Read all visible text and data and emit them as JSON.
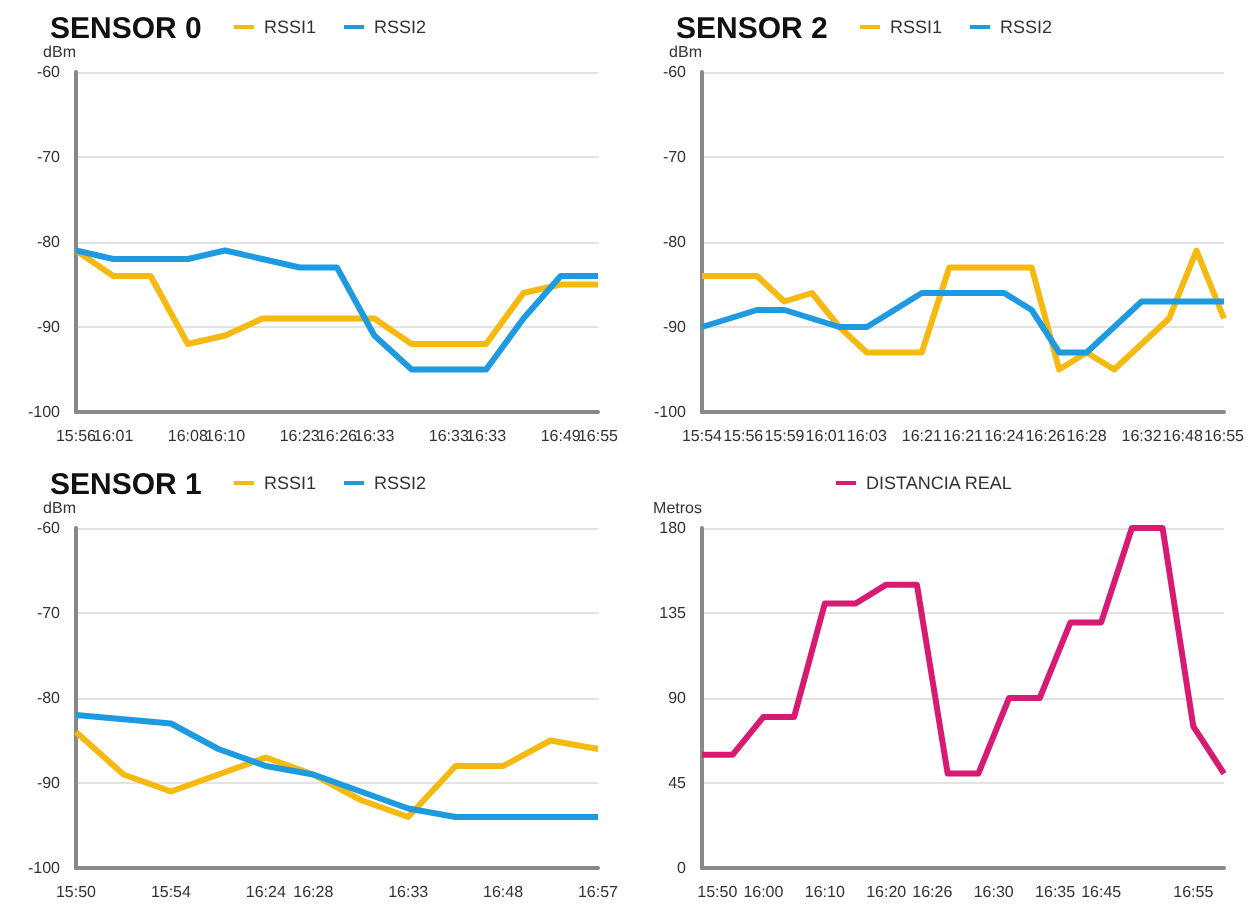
{
  "chart_data": [
    {
      "type": "line",
      "title": "SENSOR 0",
      "ylabel": "dBm",
      "categories": [
        "15:56",
        "16:01",
        null,
        "16:08",
        "16:10",
        null,
        "16:23",
        "16:26",
        "16:33",
        null,
        "16:33",
        "16:33",
        null,
        "16:49",
        "16:55"
      ],
      "series": [
        {
          "name": "RSSI1",
          "color": "#f5b90f",
          "values": [
            -81,
            -84,
            -84,
            -92,
            -91,
            -89,
            -89,
            -89,
            -89,
            -92,
            -92,
            -92,
            -86,
            -85,
            -85
          ]
        },
        {
          "name": "RSSI2",
          "color": "#1e9be0",
          "values": [
            -81,
            -82,
            -82,
            -82,
            -81,
            -82,
            -83,
            -83,
            -91,
            -95,
            -95,
            -95,
            -89,
            -84,
            -84
          ]
        }
      ],
      "ylim": [
        -100,
        -60
      ],
      "yticks": [
        -100,
        -90,
        -80,
        -70,
        -60
      ],
      "grid": "y",
      "legend": "top",
      "marker": "none",
      "line_style": "solid"
    },
    {
      "type": "line",
      "title": "SENSOR 2",
      "ylabel": "dBm",
      "categories": [
        "15:54",
        null,
        null,
        "15:56",
        null,
        null,
        "15:59",
        null,
        null,
        "16:01",
        null,
        null,
        "16:03",
        null,
        null,
        null,
        "16:21",
        null,
        null,
        "16:21",
        null,
        null,
        "16:24",
        null,
        null,
        "16:26",
        null,
        null,
        "16:28",
        null,
        null,
        null,
        "16:32",
        null,
        null,
        "16:48",
        null,
        null,
        "16:55"
      ],
      "series": [
        {
          "name": "RSSI1",
          "color": "#f5b90f",
          "values": [
            -84,
            -84,
            -84,
            -84,
            -84,
            -85.5,
            -87,
            -86.5,
            -86,
            -88,
            -90,
            -91.5,
            -93,
            -93,
            -93,
            -93,
            -93,
            -88,
            -83,
            -83,
            -83,
            -83,
            -83,
            -83,
            -83,
            -89,
            -95,
            -94,
            -93,
            -94,
            -95,
            -93.5,
            -92,
            -90.5,
            -89,
            -85,
            -81,
            -85,
            -89
          ]
        },
        {
          "name": "RSSI2",
          "color": "#1e9be0",
          "values": [
            -90,
            -89.5,
            -89,
            -88.5,
            -88,
            -88,
            -88,
            -88.5,
            -89,
            -89.5,
            -90,
            -90,
            -90,
            -89,
            -88,
            -87,
            -86,
            -86,
            -86,
            -86,
            -86,
            -86,
            -86,
            -87,
            -88,
            -90.5,
            -93,
            -93,
            -93,
            -91.5,
            -90,
            -88.5,
            -87,
            -87,
            -87,
            -87,
            -87,
            -87,
            -87
          ]
        }
      ],
      "ylim": [
        -100,
        -60
      ],
      "yticks": [
        -100,
        -90,
        -80,
        -70,
        -60
      ],
      "grid": "y",
      "legend": "top",
      "marker": "none",
      "line_style": "solid"
    },
    {
      "type": "line",
      "title": "SENSOR 1",
      "ylabel": "dBm",
      "categories": [
        "15:50",
        null,
        "15:54",
        null,
        "16:24",
        "16:28",
        null,
        "16:33",
        null,
        "16:48",
        null,
        "16:57"
      ],
      "series": [
        {
          "name": "RSSI1",
          "color": "#f5b90f",
          "values": [
            -84,
            -89,
            -91,
            -89,
            -87,
            -89,
            -92,
            -94,
            -88,
            -88,
            -85,
            -86
          ]
        },
        {
          "name": "RSSI2",
          "color": "#1e9be0",
          "values": [
            -82,
            -82.5,
            -83,
            -86,
            -88,
            -89,
            -91,
            -93,
            -94,
            -94,
            -94,
            -94
          ]
        }
      ],
      "ylim": [
        -100,
        -60
      ],
      "yticks": [
        -100,
        -90,
        -80,
        -70,
        -60
      ],
      "grid": "y",
      "legend": "top",
      "marker": "none",
      "line_style": "solid"
    },
    {
      "type": "line",
      "ylabel": "Metros",
      "categories": [
        null,
        "15:50",
        null,
        null,
        "16:00",
        null,
        null,
        null,
        "16:10",
        null,
        null,
        null,
        "16:20",
        null,
        null,
        "16:26",
        null,
        null,
        null,
        "16:30",
        null,
        null,
        null,
        "16:35",
        null,
        null,
        "16:45",
        null,
        null,
        null,
        null,
        null,
        "16:55",
        null,
        null
      ],
      "series": [
        {
          "name": "DISTANCIA REAL",
          "color": "#d81b72",
          "values": [
            60,
            60,
            60,
            70,
            80,
            80,
            80,
            110,
            140,
            140,
            140,
            145,
            150,
            150,
            150,
            100,
            50,
            50,
            50,
            70,
            90,
            90,
            90,
            110,
            130,
            130,
            130,
            155,
            180,
            180,
            180,
            127.5,
            75,
            62.5,
            50
          ]
        }
      ],
      "ylim": [
        0,
        180
      ],
      "yticks": [
        0,
        45,
        90,
        135,
        180
      ],
      "grid": "y",
      "legend": "top",
      "marker": "none",
      "line_style": "solid"
    }
  ]
}
